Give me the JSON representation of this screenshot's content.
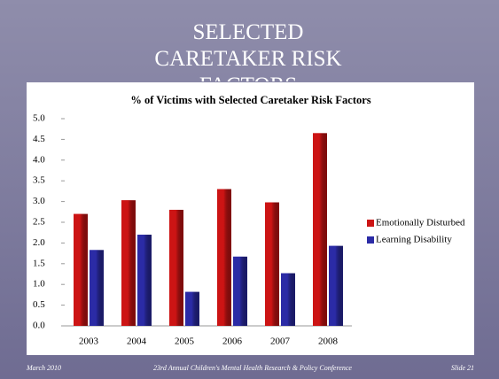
{
  "slide_title": "SELECTED CARETAKER RISK FACTORS",
  "footer": {
    "left": "March 2010",
    "center": "23rd Annual Children's Mental Health Research & Policy Conference",
    "right": "Slide 21"
  },
  "chart_data": {
    "type": "bar",
    "title": "% of Victims with Selected Caretaker  Risk Factors",
    "categories": [
      "2003",
      "2004",
      "2005",
      "2006",
      "2007",
      "2008"
    ],
    "series": [
      {
        "name": "Emotionally Disturbed",
        "color": "#cc1414",
        "values": [
          2.7,
          3.03,
          2.8,
          3.3,
          2.98,
          4.65
        ]
      },
      {
        "name": "Learning Disability",
        "color": "#2b2ba6",
        "values": [
          1.83,
          2.2,
          0.82,
          1.67,
          1.27,
          1.93
        ]
      }
    ],
    "ylim": [
      0,
      5
    ],
    "yticks": [
      {
        "value": 0,
        "label": "0.0"
      },
      0.5,
      {
        "value": 1,
        "label": "1.0"
      },
      1.5,
      {
        "value": 2,
        "label": "2.0"
      },
      2.5,
      {
        "value": 3,
        "label": "3.0"
      },
      3.5,
      {
        "value": 4,
        "label": "4.0"
      },
      4.5,
      {
        "value": 5,
        "label": "5.0"
      }
    ],
    "grid": false,
    "legend": "right"
  }
}
